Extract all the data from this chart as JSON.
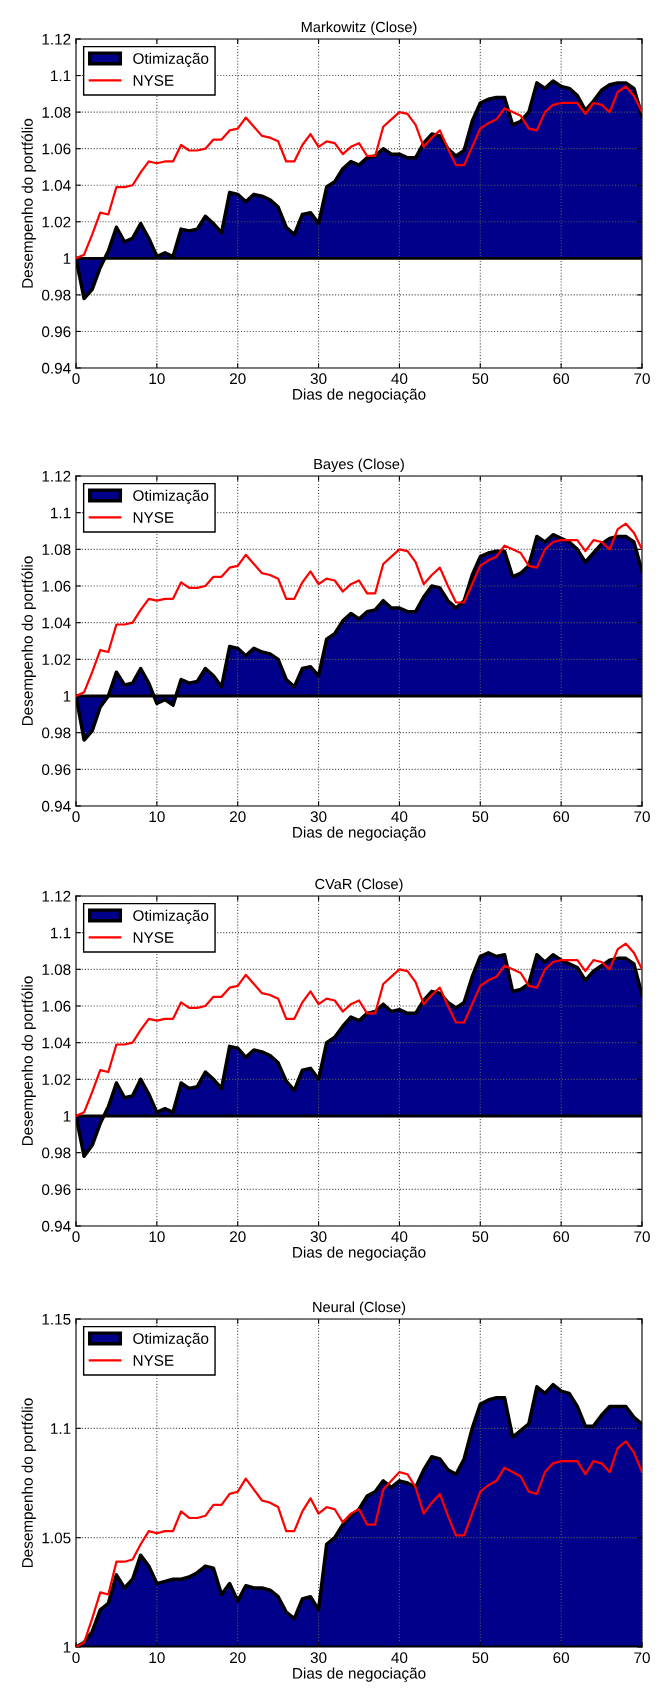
{
  "chart_data": [
    {
      "type": "area",
      "title": "Markowitz (Close)",
      "xlabel": "Dias de negociação",
      "ylabel": "Desempenho do portfólio",
      "xlim": [
        0,
        70
      ],
      "xticks": [
        0,
        10,
        20,
        30,
        40,
        50,
        60,
        70
      ],
      "ylim": [
        0.94,
        1.12
      ],
      "yticks": [
        0.94,
        0.96,
        0.98,
        1,
        1.02,
        1.04,
        1.06,
        1.08,
        1.1,
        1.12
      ],
      "grid": true,
      "legend": "top left",
      "ref_lines": [
        {
          "axis": "y",
          "value": 1,
          "color": "#000000"
        }
      ],
      "x": [
        0,
        1,
        2,
        3,
        4,
        5,
        6,
        7,
        8,
        9,
        10,
        11,
        12,
        13,
        14,
        15,
        16,
        17,
        18,
        19,
        20,
        21,
        22,
        23,
        24,
        25,
        26,
        27,
        28,
        29,
        30,
        31,
        32,
        33,
        34,
        35,
        36,
        37,
        38,
        39,
        40,
        41,
        42,
        43,
        44,
        45,
        46,
        47,
        48,
        49,
        50,
        51,
        52,
        53,
        54,
        55,
        56,
        57,
        58,
        59,
        60,
        61,
        62,
        63,
        64,
        65,
        66,
        67,
        68,
        69,
        70
      ],
      "series": [
        {
          "name": "Otimização",
          "color": "#00008b",
          "values": [
            1.0,
            0.978,
            0.983,
            0.995,
            1.004,
            1.017,
            1.009,
            1.011,
            1.019,
            1.011,
            1.001,
            1.003,
            1.001,
            1.016,
            1.015,
            1.016,
            1.023,
            1.019,
            1.014,
            1.036,
            1.035,
            1.031,
            1.035,
            1.034,
            1.032,
            1.028,
            1.017,
            1.013,
            1.024,
            1.025,
            1.019,
            1.039,
            1.042,
            1.049,
            1.053,
            1.051,
            1.055,
            1.056,
            1.06,
            1.057,
            1.057,
            1.055,
            1.055,
            1.063,
            1.068,
            1.067,
            1.06,
            1.056,
            1.059,
            1.075,
            1.085,
            1.087,
            1.088,
            1.088,
            1.073,
            1.075,
            1.08,
            1.096,
            1.093,
            1.097,
            1.094,
            1.093,
            1.089,
            1.081,
            1.086,
            1.092,
            1.095,
            1.096,
            1.096,
            1.093,
            1.078
          ]
        },
        {
          "name": "NYSE",
          "type": "line",
          "color": "#ff0000",
          "values": [
            1.0,
            1.002,
            1.013,
            1.025,
            1.024,
            1.039,
            1.039,
            1.04,
            1.047,
            1.053,
            1.052,
            1.053,
            1.053,
            1.062,
            1.059,
            1.059,
            1.06,
            1.065,
            1.065,
            1.07,
            1.071,
            1.077,
            1.072,
            1.067,
            1.066,
            1.064,
            1.053,
            1.053,
            1.062,
            1.068,
            1.061,
            1.064,
            1.063,
            1.057,
            1.061,
            1.063,
            1.056,
            1.056,
            1.072,
            1.076,
            1.08,
            1.079,
            1.073,
            1.061,
            1.066,
            1.07,
            1.06,
            1.051,
            1.051,
            1.061,
            1.071,
            1.074,
            1.076,
            1.082,
            1.08,
            1.078,
            1.071,
            1.07,
            1.08,
            1.084,
            1.085,
            1.085,
            1.085,
            1.079,
            1.085,
            1.084,
            1.08,
            1.091,
            1.094,
            1.089,
            1.08
          ]
        }
      ]
    },
    {
      "type": "area",
      "title": "Bayes (Close)",
      "xlabel": "Dias de negociação",
      "ylabel": "Desempenho do portfólio",
      "xlim": [
        0,
        70
      ],
      "xticks": [
        0,
        10,
        20,
        30,
        40,
        50,
        60,
        70
      ],
      "ylim": [
        0.94,
        1.12
      ],
      "yticks": [
        0.94,
        0.96,
        0.98,
        1,
        1.02,
        1.04,
        1.06,
        1.08,
        1.1,
        1.12
      ],
      "grid": true,
      "legend": "top left",
      "ref_lines": [
        {
          "axis": "y",
          "value": 1,
          "color": "#000000"
        }
      ],
      "x": [
        0,
        1,
        2,
        3,
        4,
        5,
        6,
        7,
        8,
        9,
        10,
        11,
        12,
        13,
        14,
        15,
        16,
        17,
        18,
        19,
        20,
        21,
        22,
        23,
        24,
        25,
        26,
        27,
        28,
        29,
        30,
        31,
        32,
        33,
        34,
        35,
        36,
        37,
        38,
        39,
        40,
        41,
        42,
        43,
        44,
        45,
        46,
        47,
        48,
        49,
        50,
        51,
        52,
        53,
        54,
        55,
        56,
        57,
        58,
        59,
        60,
        61,
        62,
        63,
        64,
        65,
        66,
        67,
        68,
        69,
        70
      ],
      "series": [
        {
          "name": "Otimização",
          "color": "#00008b",
          "values": [
            1.0,
            0.976,
            0.981,
            0.994,
            1.0,
            1.013,
            1.006,
            1.007,
            1.015,
            1.007,
            0.996,
            0.998,
            0.995,
            1.009,
            1.007,
            1.008,
            1.015,
            1.011,
            1.005,
            1.027,
            1.026,
            1.022,
            1.026,
            1.024,
            1.023,
            1.02,
            1.009,
            1.005,
            1.015,
            1.016,
            1.011,
            1.031,
            1.034,
            1.041,
            1.045,
            1.042,
            1.046,
            1.047,
            1.052,
            1.048,
            1.048,
            1.046,
            1.046,
            1.054,
            1.06,
            1.059,
            1.052,
            1.048,
            1.052,
            1.066,
            1.076,
            1.078,
            1.079,
            1.079,
            1.065,
            1.067,
            1.071,
            1.087,
            1.084,
            1.088,
            1.086,
            1.084,
            1.08,
            1.073,
            1.078,
            1.083,
            1.086,
            1.087,
            1.087,
            1.084,
            1.068
          ]
        },
        {
          "name": "NYSE",
          "type": "line",
          "color": "#ff0000",
          "values": [
            1.0,
            1.002,
            1.013,
            1.025,
            1.024,
            1.039,
            1.039,
            1.04,
            1.047,
            1.053,
            1.052,
            1.053,
            1.053,
            1.062,
            1.059,
            1.059,
            1.06,
            1.065,
            1.065,
            1.07,
            1.071,
            1.077,
            1.072,
            1.067,
            1.066,
            1.064,
            1.053,
            1.053,
            1.062,
            1.068,
            1.061,
            1.064,
            1.063,
            1.057,
            1.061,
            1.063,
            1.056,
            1.056,
            1.072,
            1.076,
            1.08,
            1.079,
            1.073,
            1.061,
            1.066,
            1.07,
            1.06,
            1.051,
            1.051,
            1.061,
            1.071,
            1.074,
            1.076,
            1.082,
            1.08,
            1.078,
            1.071,
            1.07,
            1.08,
            1.084,
            1.085,
            1.085,
            1.085,
            1.079,
            1.085,
            1.084,
            1.08,
            1.091,
            1.094,
            1.089,
            1.08
          ]
        }
      ]
    },
    {
      "type": "area",
      "title": "CVaR (Close)",
      "xlabel": "Dias de negociação",
      "ylabel": "Desempenho do portfólio",
      "xlim": [
        0,
        70
      ],
      "xticks": [
        0,
        10,
        20,
        30,
        40,
        50,
        60,
        70
      ],
      "ylim": [
        0.94,
        1.12
      ],
      "yticks": [
        0.94,
        0.96,
        0.98,
        1,
        1.02,
        1.04,
        1.06,
        1.08,
        1.1,
        1.12
      ],
      "grid": true,
      "legend": "top left",
      "ref_lines": [
        {
          "axis": "y",
          "value": 1,
          "color": "#000000"
        }
      ],
      "x": [
        0,
        1,
        2,
        3,
        4,
        5,
        6,
        7,
        8,
        9,
        10,
        11,
        12,
        13,
        14,
        15,
        16,
        17,
        18,
        19,
        20,
        21,
        22,
        23,
        24,
        25,
        26,
        27,
        28,
        29,
        30,
        31,
        32,
        33,
        34,
        35,
        36,
        37,
        38,
        39,
        40,
        41,
        42,
        43,
        44,
        45,
        46,
        47,
        48,
        49,
        50,
        51,
        52,
        53,
        54,
        55,
        56,
        57,
        58,
        59,
        60,
        61,
        62,
        63,
        64,
        65,
        66,
        67,
        68,
        69,
        70
      ],
      "series": [
        {
          "name": "Otimização",
          "color": "#00008b",
          "values": [
            1.0,
            0.978,
            0.984,
            0.996,
            1.005,
            1.018,
            1.01,
            1.011,
            1.02,
            1.012,
            1.002,
            1.004,
            1.002,
            1.018,
            1.015,
            1.016,
            1.024,
            1.02,
            1.015,
            1.038,
            1.037,
            1.032,
            1.036,
            1.035,
            1.033,
            1.029,
            1.019,
            1.014,
            1.025,
            1.026,
            1.02,
            1.04,
            1.043,
            1.049,
            1.054,
            1.052,
            1.056,
            1.057,
            1.061,
            1.057,
            1.058,
            1.056,
            1.056,
            1.063,
            1.068,
            1.067,
            1.062,
            1.059,
            1.062,
            1.076,
            1.087,
            1.089,
            1.087,
            1.088,
            1.068,
            1.069,
            1.072,
            1.088,
            1.084,
            1.088,
            1.085,
            1.083,
            1.081,
            1.074,
            1.079,
            1.082,
            1.085,
            1.086,
            1.086,
            1.083,
            1.066
          ]
        },
        {
          "name": "NYSE",
          "type": "line",
          "color": "#ff0000",
          "values": [
            1.0,
            1.002,
            1.013,
            1.025,
            1.024,
            1.039,
            1.039,
            1.04,
            1.047,
            1.053,
            1.052,
            1.053,
            1.053,
            1.062,
            1.059,
            1.059,
            1.06,
            1.065,
            1.065,
            1.07,
            1.071,
            1.077,
            1.072,
            1.067,
            1.066,
            1.064,
            1.053,
            1.053,
            1.062,
            1.068,
            1.061,
            1.064,
            1.063,
            1.057,
            1.061,
            1.063,
            1.056,
            1.056,
            1.072,
            1.076,
            1.08,
            1.079,
            1.073,
            1.061,
            1.066,
            1.07,
            1.06,
            1.051,
            1.051,
            1.061,
            1.071,
            1.074,
            1.076,
            1.082,
            1.08,
            1.078,
            1.071,
            1.07,
            1.08,
            1.084,
            1.085,
            1.085,
            1.085,
            1.079,
            1.085,
            1.084,
            1.08,
            1.091,
            1.094,
            1.089,
            1.08
          ]
        }
      ]
    },
    {
      "type": "area",
      "title": "Neural (Close)",
      "xlabel": "Dias de negociação",
      "ylabel": "Desempenho do portfólio",
      "xlim": [
        0,
        70
      ],
      "xticks": [
        0,
        10,
        20,
        30,
        40,
        50,
        60,
        70
      ],
      "ylim": [
        1,
        1.15
      ],
      "yticks": [
        1,
        1.05,
        1.1,
        1.15
      ],
      "grid": true,
      "legend": "top left",
      "ref_lines": [
        {
          "axis": "y",
          "value": 1,
          "color": "#000000"
        }
      ],
      "x": [
        0,
        1,
        2,
        3,
        4,
        5,
        6,
        7,
        8,
        9,
        10,
        11,
        12,
        13,
        14,
        15,
        16,
        17,
        18,
        19,
        20,
        21,
        22,
        23,
        24,
        25,
        26,
        27,
        28,
        29,
        30,
        31,
        32,
        33,
        34,
        35,
        36,
        37,
        38,
        39,
        40,
        41,
        42,
        43,
        44,
        45,
        46,
        47,
        48,
        49,
        50,
        51,
        52,
        53,
        54,
        55,
        56,
        57,
        58,
        59,
        60,
        61,
        62,
        63,
        64,
        65,
        66,
        67,
        68,
        69,
        70
      ],
      "series": [
        {
          "name": "Otimização",
          "color": "#00008b",
          "values": [
            1.0,
            1.002,
            1.007,
            1.017,
            1.02,
            1.033,
            1.027,
            1.031,
            1.042,
            1.037,
            1.029,
            1.03,
            1.031,
            1.031,
            1.032,
            1.034,
            1.037,
            1.036,
            1.024,
            1.029,
            1.021,
            1.028,
            1.027,
            1.027,
            1.026,
            1.023,
            1.016,
            1.013,
            1.022,
            1.023,
            1.017,
            1.047,
            1.05,
            1.056,
            1.06,
            1.063,
            1.069,
            1.071,
            1.076,
            1.073,
            1.076,
            1.075,
            1.073,
            1.081,
            1.087,
            1.086,
            1.081,
            1.079,
            1.086,
            1.1,
            1.111,
            1.113,
            1.114,
            1.114,
            1.096,
            1.099,
            1.102,
            1.119,
            1.116,
            1.12,
            1.117,
            1.116,
            1.11,
            1.101,
            1.101,
            1.106,
            1.11,
            1.11,
            1.11,
            1.105,
            1.102
          ]
        },
        {
          "name": "NYSE",
          "type": "line",
          "color": "#ff0000",
          "values": [
            1.0,
            1.002,
            1.013,
            1.025,
            1.024,
            1.039,
            1.039,
            1.04,
            1.047,
            1.053,
            1.052,
            1.053,
            1.053,
            1.062,
            1.059,
            1.059,
            1.06,
            1.065,
            1.065,
            1.07,
            1.071,
            1.077,
            1.072,
            1.067,
            1.066,
            1.064,
            1.053,
            1.053,
            1.062,
            1.068,
            1.061,
            1.064,
            1.063,
            1.057,
            1.061,
            1.063,
            1.056,
            1.056,
            1.072,
            1.076,
            1.08,
            1.079,
            1.073,
            1.061,
            1.066,
            1.07,
            1.06,
            1.051,
            1.051,
            1.061,
            1.071,
            1.074,
            1.076,
            1.082,
            1.08,
            1.078,
            1.071,
            1.07,
            1.08,
            1.084,
            1.085,
            1.085,
            1.085,
            1.079,
            1.085,
            1.084,
            1.08,
            1.091,
            1.094,
            1.089,
            1.08
          ]
        }
      ]
    }
  ]
}
